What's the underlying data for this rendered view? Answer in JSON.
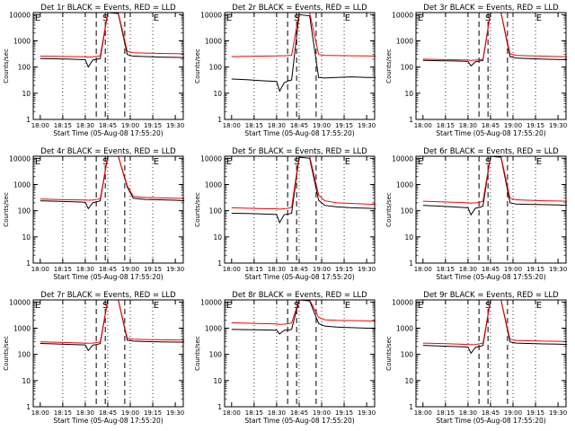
{
  "figure": {
    "xlabel": "Start Time (05-Aug-08 17:55:20)",
    "ylabel": "Counts/sec",
    "xticks": [
      "18:00",
      "18:15",
      "18:30",
      "18:45",
      "19:00",
      "19:15",
      "19:30"
    ],
    "yticks": [
      "1",
      "10",
      "100",
      "1000",
      "10000"
    ],
    "marker_labels": [
      "E",
      "S",
      "E"
    ],
    "colors": {
      "events": "#000000",
      "lld": "#ff0000",
      "axes": "#000000"
    }
  },
  "chart_data": [
    {
      "type": "line",
      "title": "Det 1r BLACK = Events, RED = LLD",
      "xlabel": "Start Time (05-Aug-08 17:55:20)",
      "ylabel": "Counts/sec",
      "x": [
        0,
        10,
        20,
        30,
        32,
        35,
        38,
        40,
        45,
        52,
        58,
        62,
        70,
        80,
        90,
        96
      ],
      "series": [
        {
          "name": "Events",
          "values": [
            210,
            205,
            200,
            190,
            100,
            185,
            200,
            210,
            12000,
            11000,
            300,
            260,
            250,
            240,
            235,
            230
          ]
        },
        {
          "name": "LLD",
          "values": [
            260,
            255,
            250,
            245,
            240,
            245,
            255,
            270,
            14000,
            13000,
            400,
            350,
            340,
            330,
            325,
            320
          ]
        }
      ],
      "ylim": [
        1,
        12000
      ],
      "grid": false
    },
    {
      "type": "line",
      "title": "Det 2r BLACK = Events, RED = LLD",
      "xlabel": "Start Time (05-Aug-08 17:55:20)",
      "ylabel": "Counts/sec",
      "x": [
        0,
        10,
        20,
        30,
        32,
        35,
        38,
        40,
        45,
        52,
        58,
        62,
        70,
        80,
        90,
        96
      ],
      "series": [
        {
          "name": "Events",
          "values": [
            35,
            33,
            30,
            28,
            12,
            25,
            30,
            32,
            10000,
            9000,
            40,
            38,
            40,
            42,
            40,
            40
          ]
        },
        {
          "name": "LLD",
          "values": [
            250,
            255,
            260,
            265,
            270,
            270,
            275,
            280,
            14000,
            13000,
            300,
            280,
            275,
            270,
            265,
            260
          ]
        }
      ],
      "ylim": [
        1,
        12000
      ],
      "grid": false
    },
    {
      "type": "line",
      "title": "Det 3r BLACK = Events, RED = LLD",
      "xlabel": "Start Time (05-Aug-08 17:55:20)",
      "ylabel": "Counts/sec",
      "x": [
        0,
        10,
        20,
        30,
        32,
        35,
        38,
        40,
        45,
        52,
        58,
        62,
        70,
        80,
        90,
        96
      ],
      "series": [
        {
          "name": "Events",
          "values": [
            180,
            175,
            170,
            165,
            110,
            160,
            170,
            180,
            13000,
            12000,
            250,
            220,
            210,
            200,
            195,
            190
          ]
        },
        {
          "name": "LLD",
          "values": [
            200,
            195,
            190,
            185,
            180,
            185,
            190,
            200,
            14000,
            13000,
            320,
            280,
            270,
            260,
            250,
            245
          ]
        }
      ],
      "ylim": [
        1,
        12000
      ],
      "grid": false
    },
    {
      "type": "line",
      "title": "Det 4r BLACK = Events, RED = LLD",
      "xlabel": "Start Time (05-Aug-08 17:55:20)",
      "ylabel": "Counts/sec",
      "x": [
        0,
        10,
        20,
        30,
        32,
        35,
        38,
        40,
        45,
        52,
        58,
        62,
        70,
        80,
        90,
        96
      ],
      "series": [
        {
          "name": "Events",
          "values": [
            240,
            230,
            220,
            210,
            120,
            200,
            220,
            240,
            13000,
            12000,
            800,
            300,
            270,
            260,
            250,
            240
          ]
        },
        {
          "name": "LLD",
          "values": [
            280,
            270,
            260,
            255,
            250,
            255,
            270,
            290,
            14000,
            13000,
            900,
            350,
            320,
            310,
            300,
            290
          ]
        }
      ],
      "ylim": [
        1,
        12000
      ],
      "grid": false
    },
    {
      "type": "line",
      "title": "Det 5r BLACK = Events, RED = LLD",
      "xlabel": "Start Time (05-Aug-08 17:55:20)",
      "ylabel": "Counts/sec",
      "x": [
        0,
        10,
        20,
        30,
        32,
        35,
        38,
        40,
        45,
        52,
        58,
        62,
        70,
        80,
        90,
        96
      ],
      "series": [
        {
          "name": "Events",
          "values": [
            80,
            78,
            75,
            72,
            35,
            70,
            75,
            80,
            11000,
            10000,
            250,
            160,
            140,
            130,
            125,
            120
          ]
        },
        {
          "name": "LLD",
          "values": [
            130,
            125,
            120,
            118,
            115,
            118,
            125,
            135,
            14000,
            13000,
            400,
            240,
            200,
            190,
            180,
            175
          ]
        }
      ],
      "ylim": [
        1,
        12000
      ],
      "grid": false
    },
    {
      "type": "line",
      "title": "Det 6r BLACK = Events, RED = LLD",
      "xlabel": "Start Time (05-Aug-08 17:55:20)",
      "ylabel": "Counts/sec",
      "x": [
        0,
        10,
        20,
        30,
        32,
        35,
        38,
        40,
        45,
        52,
        58,
        62,
        70,
        80,
        90,
        96
      ],
      "series": [
        {
          "name": "Events",
          "values": [
            160,
            150,
            140,
            130,
            70,
            125,
            135,
            150,
            12000,
            11000,
            200,
            180,
            175,
            170,
            165,
            160
          ]
        },
        {
          "name": "LLD",
          "values": [
            230,
            220,
            210,
            200,
            195,
            200,
            210,
            230,
            14000,
            13000,
            300,
            260,
            250,
            240,
            235,
            230
          ]
        }
      ],
      "ylim": [
        1,
        12000
      ],
      "grid": false
    },
    {
      "type": "line",
      "title": "Det 7r BLACK = Events, RED = LLD",
      "xlabel": "Start Time (05-Aug-08 17:55:20)",
      "ylabel": "Counts/sec",
      "x": [
        0,
        10,
        20,
        30,
        32,
        35,
        38,
        40,
        45,
        52,
        58,
        62,
        70,
        80,
        90,
        96
      ],
      "series": [
        {
          "name": "Events",
          "values": [
            260,
            250,
            240,
            230,
            140,
            225,
            240,
            260,
            13000,
            12000,
            350,
            320,
            310,
            300,
            295,
            290
          ]
        },
        {
          "name": "LLD",
          "values": [
            300,
            290,
            280,
            270,
            265,
            270,
            285,
            300,
            14000,
            13000,
            420,
            380,
            370,
            360,
            355,
            350
          ]
        }
      ],
      "ylim": [
        1,
        12000
      ],
      "grid": false
    },
    {
      "type": "line",
      "title": "Det 8r BLACK = Events, RED = LLD",
      "xlabel": "Start Time (05-Aug-08 17:55:20)",
      "ylabel": "Counts/sec",
      "x": [
        0,
        10,
        20,
        30,
        32,
        35,
        38,
        40,
        45,
        52,
        58,
        62,
        70,
        80,
        90,
        96
      ],
      "series": [
        {
          "name": "Events",
          "values": [
            900,
            880,
            860,
            840,
            600,
            830,
            850,
            900,
            12000,
            11000,
            1500,
            1200,
            1100,
            1050,
            1000,
            980
          ]
        },
        {
          "name": "LLD",
          "values": [
            1600,
            1550,
            1500,
            1450,
            1400,
            1420,
            1480,
            1600,
            14000,
            13000,
            2600,
            2100,
            2000,
            1950,
            1900,
            1850
          ]
        }
      ],
      "ylim": [
        1,
        12000
      ],
      "grid": false
    },
    {
      "type": "line",
      "title": "Det 9r BLACK = Events, RED = LLD",
      "xlabel": "Start Time (05-Aug-08 17:55:20)",
      "ylabel": "Counts/sec",
      "x": [
        0,
        10,
        20,
        30,
        32,
        35,
        38,
        40,
        45,
        52,
        58,
        62,
        70,
        80,
        90,
        96
      ],
      "series": [
        {
          "name": "Events",
          "values": [
            220,
            210,
            200,
            190,
            110,
            185,
            200,
            220,
            13000,
            12000,
            300,
            270,
            260,
            250,
            245,
            240
          ]
        },
        {
          "name": "LLD",
          "values": [
            270,
            260,
            250,
            240,
            235,
            240,
            255,
            270,
            14000,
            13000,
            380,
            340,
            330,
            320,
            315,
            310
          ]
        }
      ],
      "ylim": [
        1,
        12000
      ],
      "grid": false
    }
  ]
}
